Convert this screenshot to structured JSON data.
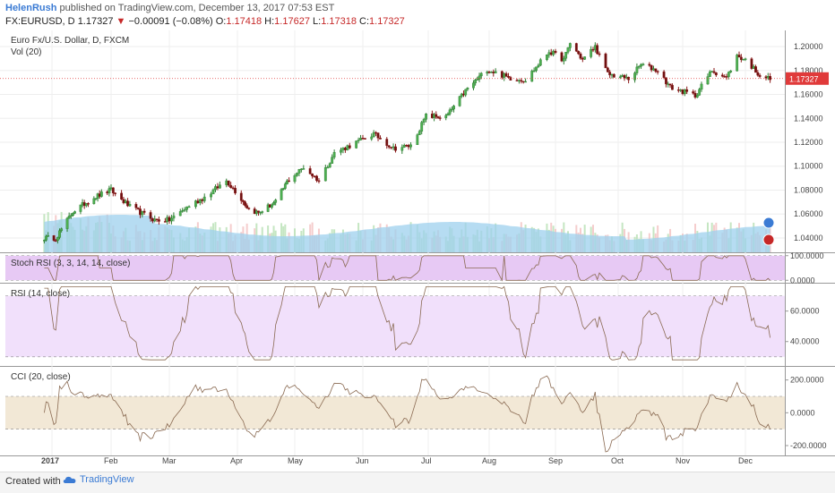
{
  "header": {
    "user": "HelenRush",
    "published": "published on TradingView.com, December 13, 2017 07:53 EST",
    "symbol": "FX:EURUSD, D",
    "last": "1.17327",
    "change": "−0.00091 (−0.08%)",
    "o_label": "O:",
    "o": "1.17418",
    "h_label": "H:",
    "h": "1.17627",
    "l_label": "L:",
    "l": "1.17318",
    "c_label": "C:",
    "c": "1.17327"
  },
  "footer": {
    "created": "Created with",
    "brand": "TradingView"
  },
  "colors": {
    "up": "#2e7d32",
    "down": "#8b1a1a",
    "vol_fill": "#9ed0ee",
    "stoch_bg": "#e7c9f4",
    "rsi_bg": "#f1e0fb",
    "cci_bg": "#f2e8d6",
    "price_line": "#e03a3a"
  },
  "chart_data": [
    {
      "type": "candlestick",
      "title": "Euro Fx/U.S. Dollar, D, FXCM",
      "subtitle": "Vol (20)",
      "x_ticks": [
        "2017",
        "Feb",
        "Mar",
        "Apr",
        "May",
        "Jun",
        "Jul",
        "Aug",
        "Sep",
        "Oct",
        "Nov",
        "Dec"
      ],
      "y_ticks": [
        "1.20000",
        "1.18000",
        "1.16000",
        "1.14000",
        "1.12000",
        "1.10000",
        "1.08000",
        "1.06000",
        "1.04000"
      ],
      "ylim": [
        1.028,
        1.212
      ],
      "last_price_label": "1.17327",
      "anchors": [
        [
          "2017-01-03",
          1.04
        ],
        [
          "2017-01-12",
          1.062
        ],
        [
          "2017-01-23",
          1.074
        ],
        [
          "2017-02-01",
          1.08
        ],
        [
          "2017-02-10",
          1.066
        ],
        [
          "2017-02-22",
          1.055
        ],
        [
          "2017-03-01",
          1.055
        ],
        [
          "2017-03-10",
          1.067
        ],
        [
          "2017-03-17",
          1.074
        ],
        [
          "2017-03-27",
          1.088
        ],
        [
          "2017-04-07",
          1.064
        ],
        [
          "2017-04-12",
          1.061
        ],
        [
          "2017-04-21",
          1.07
        ],
        [
          "2017-04-27",
          1.087
        ],
        [
          "2017-05-05",
          1.099
        ],
        [
          "2017-05-12",
          1.088
        ],
        [
          "2017-05-19",
          1.111
        ],
        [
          "2017-06-06",
          1.127
        ],
        [
          "2017-06-15",
          1.115
        ],
        [
          "2017-06-23",
          1.117
        ],
        [
          "2017-06-30",
          1.142
        ],
        [
          "2017-07-10",
          1.141
        ],
        [
          "2017-07-20",
          1.163
        ],
        [
          "2017-07-31",
          1.181
        ],
        [
          "2017-08-10",
          1.174
        ],
        [
          "2017-08-18",
          1.172
        ],
        [
          "2017-08-29",
          1.196
        ],
        [
          "2017-09-05",
          1.189
        ],
        [
          "2017-09-08",
          1.203
        ],
        [
          "2017-09-14",
          1.189
        ],
        [
          "2017-09-20",
          1.2
        ],
        [
          "2017-09-26",
          1.177
        ],
        [
          "2017-10-06",
          1.173
        ],
        [
          "2017-10-12",
          1.185
        ],
        [
          "2017-10-20",
          1.18
        ],
        [
          "2017-10-26",
          1.166
        ],
        [
          "2017-11-07",
          1.159
        ],
        [
          "2017-11-15",
          1.18
        ],
        [
          "2017-11-22",
          1.174
        ],
        [
          "2017-11-27",
          1.192
        ],
        [
          "2017-12-01",
          1.189
        ],
        [
          "2017-12-08",
          1.176
        ],
        [
          "2017-12-13",
          1.173
        ]
      ]
    },
    {
      "type": "line",
      "title": "Stoch RSI (3, 3, 14, 14, close)",
      "y_ticks": [
        "100.0000",
        "0.0000"
      ],
      "ylim": [
        -10,
        110
      ]
    },
    {
      "type": "line",
      "title": "RSI (14, close)",
      "y_ticks": [
        "60.0000",
        "40.0000"
      ],
      "ylim": [
        24,
        78
      ],
      "bands": [
        70,
        30
      ]
    },
    {
      "type": "line",
      "title": "CCI (20, close)",
      "y_ticks": [
        "200.0000",
        "0.0000",
        "-200.0000"
      ],
      "ylim": [
        -260,
        280
      ],
      "bands": [
        100,
        -100
      ]
    }
  ]
}
